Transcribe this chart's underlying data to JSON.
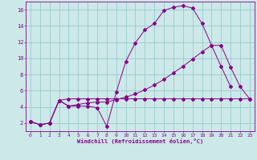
{
  "xlabel": "Windchill (Refroidissement éolien,°C)",
  "bg_color": "#cce8e8",
  "grid_color": "#99cccc",
  "line_color": "#880088",
  "xlim": [
    -0.5,
    23.5
  ],
  "ylim": [
    1.0,
    17.0
  ],
  "xticks": [
    0,
    1,
    2,
    3,
    4,
    5,
    6,
    7,
    8,
    9,
    10,
    11,
    12,
    13,
    14,
    15,
    16,
    17,
    18,
    19,
    20,
    21,
    22,
    23
  ],
  "yticks": [
    2,
    4,
    6,
    8,
    10,
    12,
    14,
    16
  ],
  "line1_x": [
    0,
    1,
    2,
    3,
    4,
    5,
    6,
    7,
    8,
    9,
    10,
    11,
    12,
    13,
    14,
    15,
    16,
    17,
    18,
    19,
    20,
    21
  ],
  "line1_y": [
    2.2,
    1.8,
    2.0,
    4.8,
    4.1,
    4.1,
    4.1,
    3.9,
    1.6,
    5.8,
    9.6,
    11.9,
    13.5,
    14.3,
    15.9,
    16.3,
    16.5,
    16.2,
    14.3,
    11.6,
    9.0,
    6.5
  ],
  "line2_x": [
    0,
    1,
    2,
    3,
    4,
    5,
    6,
    7,
    8,
    9,
    10,
    11,
    12,
    13,
    14,
    15,
    16,
    17,
    18,
    19,
    20,
    21,
    22,
    23
  ],
  "line2_y": [
    2.2,
    1.8,
    2.0,
    4.8,
    5.0,
    5.0,
    5.0,
    5.0,
    5.0,
    5.0,
    5.0,
    5.0,
    5.0,
    5.0,
    5.0,
    5.0,
    5.0,
    5.0,
    5.0,
    5.0,
    5.0,
    5.0,
    5.0,
    5.0
  ],
  "line3_x": [
    0,
    1,
    2,
    3,
    4,
    5,
    6,
    7,
    8,
    9,
    10,
    11,
    12,
    13,
    14,
    15,
    16,
    17,
    18,
    19,
    20,
    21,
    22,
    23
  ],
  "line3_y": [
    2.2,
    1.8,
    2.0,
    4.8,
    4.1,
    4.3,
    4.5,
    4.6,
    4.6,
    4.9,
    5.2,
    5.6,
    6.1,
    6.7,
    7.4,
    8.2,
    9.0,
    9.9,
    10.8,
    11.6,
    11.6,
    8.9,
    6.5,
    5.0
  ]
}
